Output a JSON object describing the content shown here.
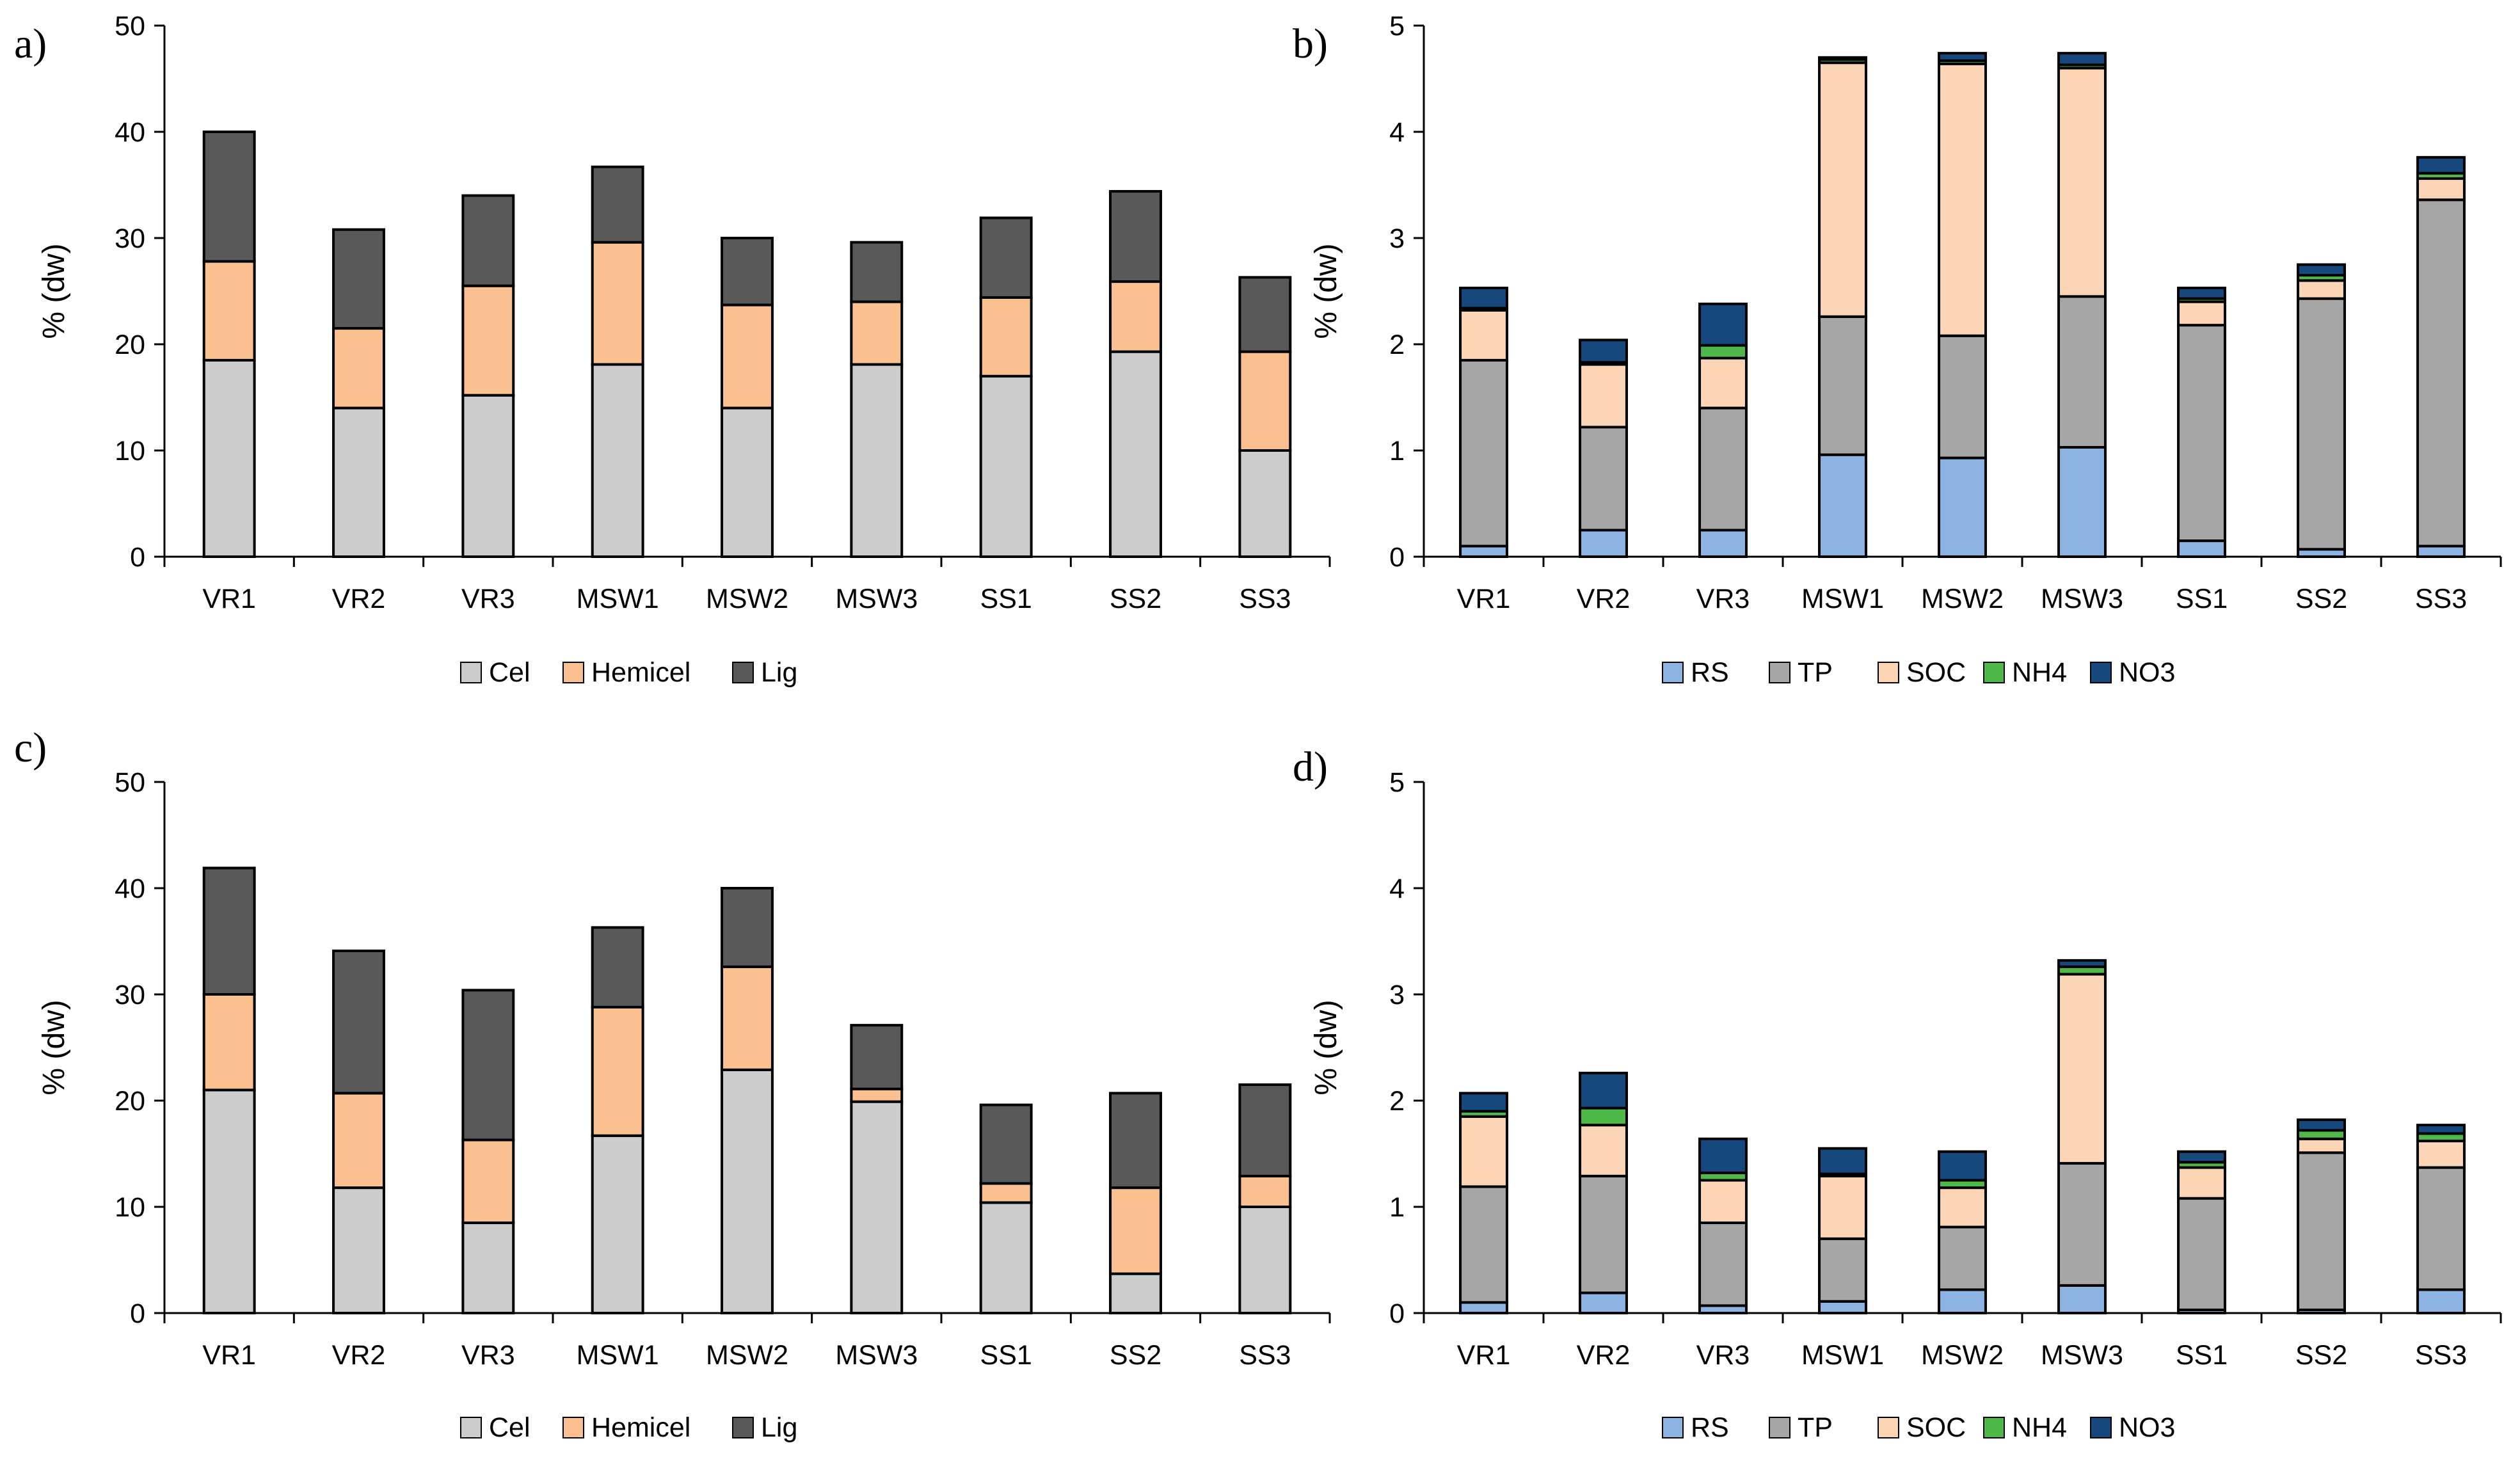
{
  "chart_data": [
    {
      "panel": "a)",
      "type": "bar",
      "stacked": true,
      "ylabel": "% (dw)",
      "ylim": [
        0,
        50
      ],
      "yticks": [
        0,
        10,
        20,
        30,
        40,
        50
      ],
      "categories": [
        "VR1",
        "VR2",
        "VR3",
        "MSW1",
        "MSW2",
        "MSW3",
        "SS1",
        "SS2",
        "SS3"
      ],
      "series": [
        {
          "name": "Cel",
          "color": "#cccccc",
          "values": [
            18.5,
            14.0,
            15.2,
            18.1,
            14.0,
            18.1,
            17.0,
            19.3,
            10.0
          ]
        },
        {
          "name": "Hemicel",
          "color": "#fac090",
          "values": [
            9.3,
            7.5,
            10.3,
            11.5,
            9.7,
            5.9,
            7.4,
            6.6,
            9.3
          ]
        },
        {
          "name": "Lig",
          "color": "#595959",
          "values": [
            12.2,
            9.3,
            8.5,
            7.1,
            6.3,
            5.6,
            7.5,
            8.5,
            7.0
          ]
        }
      ],
      "legend_position": "bottom"
    },
    {
      "panel": "b)",
      "type": "bar",
      "stacked": true,
      "ylabel": "% (dw)",
      "ylim": [
        0,
        5
      ],
      "yticks": [
        0,
        1,
        2,
        3,
        4,
        5
      ],
      "categories": [
        "VR1",
        "VR2",
        "VR3",
        "MSW1",
        "MSW2",
        "MSW3",
        "SS1",
        "SS2",
        "SS3"
      ],
      "series": [
        {
          "name": "RS",
          "color": "#8db3e2",
          "values": [
            0.1,
            0.25,
            0.25,
            0.96,
            0.93,
            1.03,
            0.15,
            0.07,
            0.1
          ]
        },
        {
          "name": "TP",
          "color": "#a6a6a6",
          "values": [
            1.75,
            0.97,
            1.15,
            1.3,
            1.15,
            1.42,
            2.03,
            2.36,
            3.26
          ]
        },
        {
          "name": "SOC",
          "color": "#fbd5b5",
          "values": [
            0.47,
            0.59,
            0.47,
            2.39,
            2.56,
            2.15,
            0.22,
            0.17,
            0.2
          ]
        },
        {
          "name": "NH4",
          "color": "#4eb848",
          "values": [
            0.02,
            0.02,
            0.12,
            0.03,
            0.03,
            0.03,
            0.03,
            0.05,
            0.05
          ]
        },
        {
          "name": "NO3",
          "color": "#16487e",
          "values": [
            0.19,
            0.21,
            0.39,
            0.02,
            0.07,
            0.11,
            0.1,
            0.1,
            0.15
          ]
        }
      ],
      "legend_position": "bottom"
    },
    {
      "panel": "c)",
      "type": "bar",
      "stacked": true,
      "ylabel": "% (dw)",
      "ylim": [
        0,
        50
      ],
      "yticks": [
        0,
        10,
        20,
        30,
        40,
        50
      ],
      "categories": [
        "VR1",
        "VR2",
        "VR3",
        "MSW1",
        "MSW2",
        "MSW3",
        "SS1",
        "SS2",
        "SS3"
      ],
      "series": [
        {
          "name": "Cel",
          "color": "#cccccc",
          "values": [
            21.0,
            11.8,
            8.5,
            16.7,
            22.9,
            19.9,
            10.4,
            3.7,
            10.0
          ]
        },
        {
          "name": "Hemicel",
          "color": "#fac090",
          "values": [
            9.0,
            8.9,
            7.8,
            12.1,
            9.7,
            1.2,
            1.8,
            8.1,
            2.9
          ]
        },
        {
          "name": "Lig",
          "color": "#595959",
          "values": [
            11.9,
            13.4,
            14.1,
            7.5,
            7.4,
            6.0,
            7.4,
            8.9,
            8.6
          ]
        }
      ],
      "legend_position": "bottom"
    },
    {
      "panel": "d)",
      "type": "bar",
      "stacked": true,
      "ylabel": "% (dw)",
      "ylim": [
        0,
        5
      ],
      "yticks": [
        0,
        1,
        2,
        3,
        4,
        5
      ],
      "categories": [
        "VR1",
        "VR2",
        "VR3",
        "MSW1",
        "MSW2",
        "MSW3",
        "SS1",
        "SS2",
        "SS3"
      ],
      "series": [
        {
          "name": "RS",
          "color": "#8db3e2",
          "values": [
            0.1,
            0.19,
            0.07,
            0.11,
            0.22,
            0.26,
            0.03,
            0.03,
            0.22
          ]
        },
        {
          "name": "TP",
          "color": "#a6a6a6",
          "values": [
            1.09,
            1.1,
            0.78,
            0.59,
            0.59,
            1.15,
            1.05,
            1.48,
            1.15
          ]
        },
        {
          "name": "SOC",
          "color": "#fbd5b5",
          "values": [
            0.66,
            0.48,
            0.4,
            0.59,
            0.37,
            1.78,
            0.29,
            0.13,
            0.25
          ]
        },
        {
          "name": "NH4",
          "color": "#4eb848",
          "values": [
            0.05,
            0.16,
            0.07,
            0.02,
            0.07,
            0.07,
            0.05,
            0.08,
            0.07
          ]
        },
        {
          "name": "NO3",
          "color": "#16487e",
          "values": [
            0.17,
            0.33,
            0.32,
            0.24,
            0.27,
            0.06,
            0.1,
            0.1,
            0.08
          ]
        }
      ],
      "legend_position": "bottom"
    }
  ]
}
